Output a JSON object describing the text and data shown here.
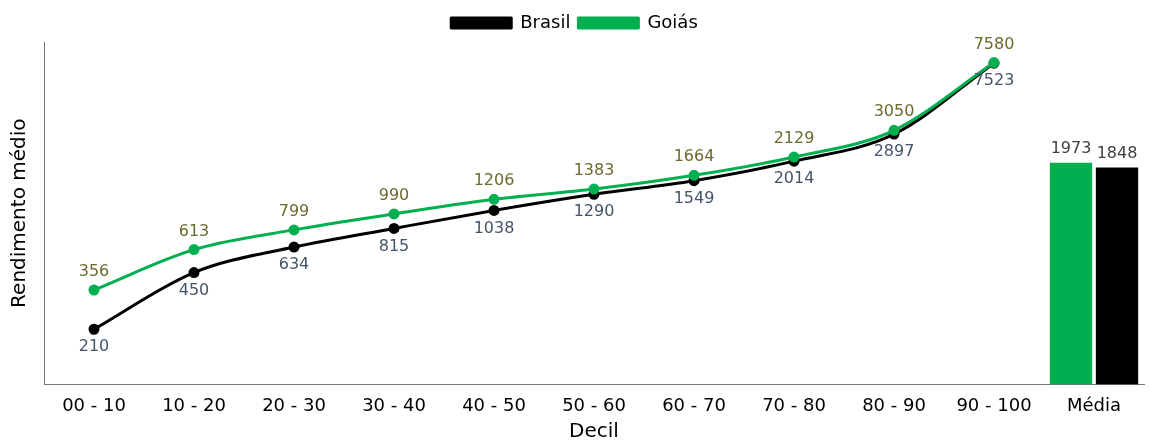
{
  "chart_data": {
    "type": "line",
    "xlabel": "Decil",
    "ylabel": "Rendimento médio",
    "categories": [
      "00 - 10",
      "10 - 20",
      "20 - 30",
      "30 - 40",
      "40 - 50",
      "50 - 60",
      "60 - 70",
      "70 - 80",
      "80 - 90",
      "90 - 100",
      "Média"
    ],
    "series": [
      {
        "name": "Brasil",
        "color": "#000000",
        "values": [
          210,
          450,
          634,
          815,
          1038,
          1290,
          1549,
          2014,
          2897,
          7523,
          null
        ]
      },
      {
        "name": "Goiás",
        "color": "#00b050",
        "values": [
          356,
          613,
          799,
          990,
          1206,
          1383,
          1664,
          2129,
          3050,
          7580,
          null
        ]
      },
      {
        "type": "bar",
        "color": "#00b050",
        "values": [
          null,
          null,
          null,
          null,
          null,
          null,
          null,
          null,
          null,
          null,
          1973
        ]
      },
      {
        "type": "bar",
        "color": "#000000",
        "values": [
          null,
          null,
          null,
          null,
          null,
          null,
          null,
          null,
          null,
          null,
          1848
        ]
      }
    ],
    "log": "y",
    "ylim": [
      100,
      10000
    ],
    "tick_labels": "x",
    "grid": false,
    "legend": "top",
    "marker": "circle",
    "line_style": "solid",
    "data_labels": true
  }
}
